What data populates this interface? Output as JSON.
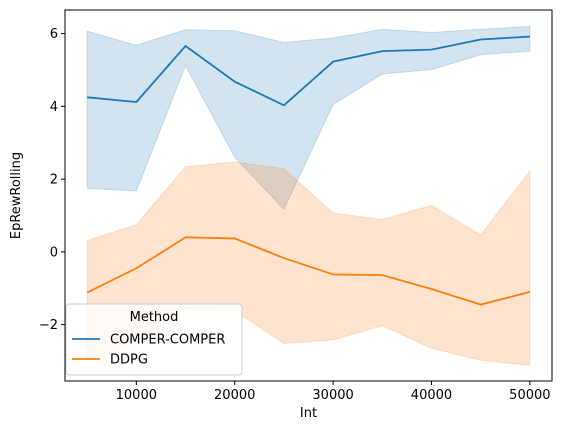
{
  "chart_data": {
    "type": "line",
    "title": "",
    "xlabel": "Int",
    "ylabel": "EpRewRolling",
    "xlim": [
      2750,
      52250
    ],
    "ylim": [
      -3.55,
      6.65
    ],
    "xticks": [
      10000,
      20000,
      30000,
      40000,
      50000
    ],
    "yticks": [
      -2,
      0,
      2,
      4,
      6
    ],
    "x": [
      5000,
      10000,
      15000,
      20000,
      25000,
      30000,
      35000,
      40000,
      45000,
      50000
    ],
    "series": [
      {
        "name": "COMPER-COMPER",
        "color": "#1f77b4",
        "values": [
          4.25,
          4.12,
          5.66,
          4.68,
          4.03,
          5.23,
          5.52,
          5.56,
          5.84,
          5.92
        ],
        "lower": [
          1.75,
          1.67,
          5.12,
          2.6,
          1.17,
          4.05,
          4.89,
          5.01,
          5.42,
          5.52
        ],
        "upper": [
          6.07,
          5.68,
          6.11,
          6.08,
          5.76,
          5.88,
          6.12,
          6.03,
          6.12,
          6.2
        ]
      },
      {
        "name": "DDPG",
        "color": "#ff7f0e",
        "values": [
          -1.12,
          -0.45,
          0.4,
          0.37,
          -0.17,
          -0.62,
          -0.64,
          -1.02,
          -1.45,
          -1.1
        ],
        "lower": [
          -3.0,
          -2.48,
          -1.55,
          -1.62,
          -2.52,
          -2.42,
          -2.03,
          -2.65,
          -2.98,
          -3.12
        ],
        "upper": [
          0.31,
          0.75,
          2.34,
          2.47,
          2.29,
          1.07,
          0.89,
          1.28,
          0.47,
          2.22
        ]
      }
    ],
    "legend": {
      "title": "Method",
      "placement": "lower-left"
    },
    "grid": false
  }
}
